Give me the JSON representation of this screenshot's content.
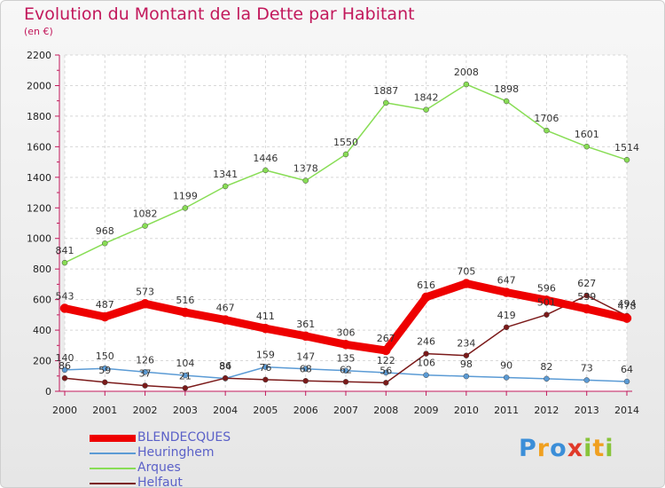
{
  "header": {
    "title": "Evolution du Montant de la Dette par Habitant",
    "unit": "(en €)"
  },
  "logo": {
    "text": "Proxiti"
  },
  "chart_data": {
    "type": "line",
    "title": "Evolution du Montant de la Dette par Habitant",
    "subtitle": "(en €)",
    "xlabel": "",
    "ylabel": "",
    "x": [
      "2000",
      "2001",
      "2002",
      "2003",
      "2004",
      "2005",
      "2006",
      "2007",
      "2008",
      "2009",
      "2010",
      "2011",
      "2012",
      "2013",
      "2014"
    ],
    "ylim": [
      0,
      2200
    ],
    "yticks": [
      0,
      200,
      400,
      600,
      800,
      1000,
      1200,
      1400,
      1600,
      1800,
      2000,
      2200
    ],
    "grid": true,
    "legend": "bottom-left",
    "series": [
      {
        "name": "BLENDECQUES",
        "color": "#ee0000",
        "values": [
          543,
          487,
          573,
          516,
          467,
          411,
          361,
          306,
          267,
          616,
          705,
          647,
          596,
          539,
          478
        ]
      },
      {
        "name": "Heuringhem",
        "color": "#5b9bd5",
        "values": [
          140,
          150,
          126,
          104,
          84,
          159,
          147,
          135,
          122,
          106,
          98,
          90,
          82,
          73,
          64
        ]
      },
      {
        "name": "Arques",
        "color": "#88dd55",
        "values": [
          841,
          968,
          1082,
          1199,
          1341,
          1446,
          1378,
          1550,
          1887,
          1842,
          2008,
          1898,
          1706,
          1601,
          1514
        ]
      },
      {
        "name": "Helfaut",
        "color": "#7b1a1a",
        "values": [
          86,
          59,
          37,
          21,
          86,
          76,
          68,
          62,
          56,
          246,
          234,
          419,
          501,
          627,
          494
        ]
      }
    ]
  }
}
